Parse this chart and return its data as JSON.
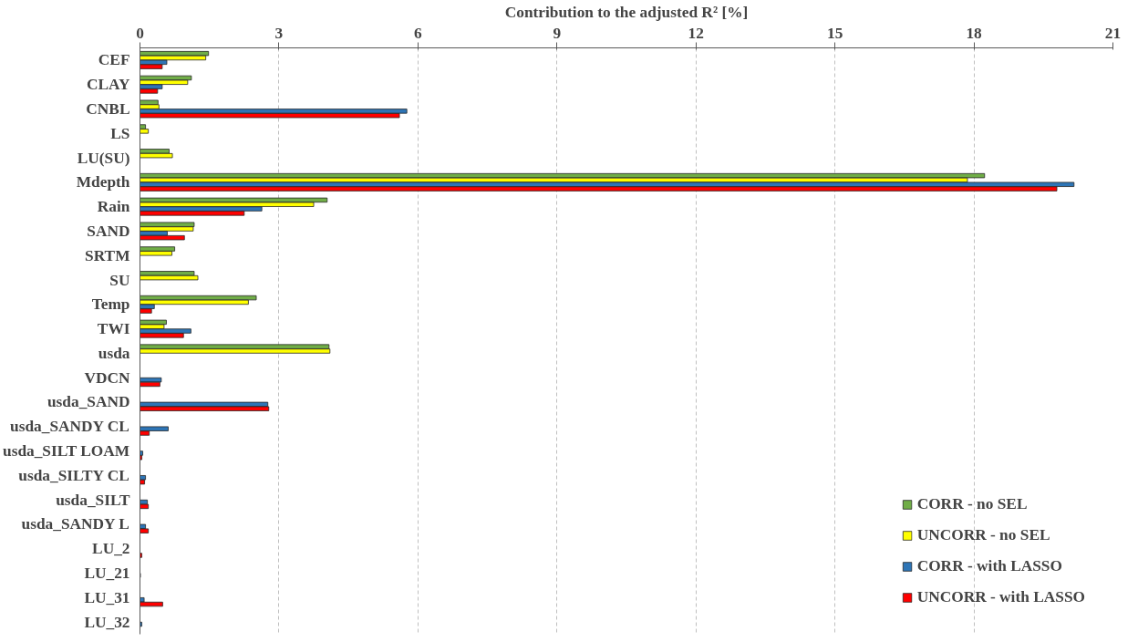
{
  "chart_data": {
    "type": "bar",
    "orientation": "horizontal",
    "xlabel": "Contribution to the adjusted R² [%]",
    "categories": [
      "CEF",
      "CLAY",
      "CNBL",
      "LS",
      "LU(SU)",
      "Mdepth",
      "Rain",
      "SAND",
      "SRTM",
      "SU",
      "Temp",
      "TWI",
      "usda",
      "VDCN",
      "usda_SAND",
      "usda_SANDY CL",
      "usda_SILT LOAM",
      "usda_SILTY CL",
      "usda_SILT",
      "usda_SANDY L",
      "LU_2",
      "LU_21",
      "LU_31",
      "LU_32"
    ],
    "series": [
      {
        "name": "CORR - no SEL",
        "color": "#70ad47",
        "values": [
          1.48,
          1.11,
          0.39,
          0.12,
          0.63,
          18.23,
          4.04,
          1.17,
          0.75,
          1.17,
          2.51,
          0.57,
          4.08,
          null,
          null,
          null,
          null,
          null,
          null,
          null,
          null,
          null,
          null,
          null
        ]
      },
      {
        "name": "UNCORR - no SEL",
        "color": "#ffff00",
        "values": [
          1.42,
          1.03,
          0.41,
          0.18,
          0.7,
          17.86,
          3.75,
          1.15,
          0.69,
          1.25,
          2.34,
          0.52,
          4.1,
          null,
          null,
          null,
          null,
          null,
          null,
          null,
          null,
          null,
          null,
          null
        ]
      },
      {
        "name": "CORR - with LASSO",
        "color": "#2e75b6",
        "values": [
          0.58,
          0.48,
          5.76,
          null,
          null,
          20.16,
          2.63,
          0.59,
          null,
          null,
          0.31,
          1.1,
          null,
          0.46,
          2.76,
          0.61,
          0.06,
          0.12,
          0.16,
          0.12,
          null,
          0.01,
          0.09,
          0.04
        ]
      },
      {
        "name": "UNCORR - with LASSO",
        "color": "#ff0000",
        "values": [
          0.48,
          0.38,
          5.6,
          null,
          null,
          19.79,
          2.25,
          0.96,
          null,
          null,
          0.25,
          0.94,
          null,
          0.43,
          2.78,
          0.2,
          0.04,
          0.1,
          0.18,
          0.18,
          0.04,
          null,
          0.49,
          null
        ]
      }
    ],
    "xlim": [
      0,
      21
    ],
    "xticks": [
      0,
      3,
      6,
      9,
      12,
      15,
      18,
      21
    ],
    "grid": "x",
    "legend": "bottom right"
  }
}
